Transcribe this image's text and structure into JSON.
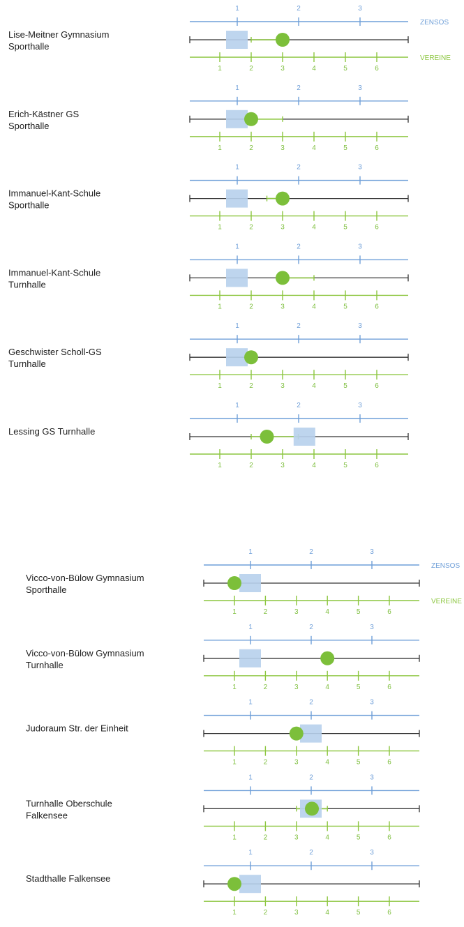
{
  "colors": {
    "zensos": "#6f9fd8",
    "zensos_box": "#b7d0ec",
    "vereine": "#8cc63f",
    "vereine_dot": "#7cbf3a",
    "axis": "#333333",
    "label": "#222222"
  },
  "chart_data": {
    "type": "scatter",
    "axes": {
      "zensos": {
        "name": "ZENSOS",
        "ticks": [
          "1",
          "2",
          "3"
        ]
      },
      "vereine": {
        "name": "VEREINE",
        "ticks": [
          "1",
          "2",
          "3",
          "4",
          "5",
          "6"
        ]
      }
    },
    "groups": [
      {
        "venues": [
          {
            "label_lines": [
              "Lise-Meitner Gymnasium",
              "Sporthalle"
            ],
            "zensos": 1.0,
            "vereine": 3.0,
            "vereine_range": [
              2.0,
              3.0
            ]
          },
          {
            "label_lines": [
              "Erich-Kästner GS",
              "Sporthalle"
            ],
            "zensos": 1.0,
            "vereine": 2.0,
            "vereine_range": [
              2.0,
              3.0
            ]
          },
          {
            "label_lines": [
              "Immanuel-Kant-Schule",
              "Sporthalle"
            ],
            "zensos": 1.0,
            "vereine": 3.0,
            "vereine_range": [
              2.5,
              3.0
            ]
          },
          {
            "label_lines": [
              "Immanuel-Kant-Schule",
              "Turnhalle"
            ],
            "zensos": 1.0,
            "vereine": 3.0,
            "vereine_range": [
              3.0,
              4.0
            ]
          },
          {
            "label_lines": [
              "Geschwister Scholl-GS",
              "Turnhalle"
            ],
            "zensos": 1.0,
            "vereine": 2.0,
            "vereine_range": [
              2.0,
              2.0
            ]
          },
          {
            "label_lines": [
              "Lessing GS Turnhalle"
            ],
            "zensos": 2.1,
            "vereine": 2.5,
            "vereine_range": [
              2.0,
              3.5
            ]
          }
        ]
      },
      {
        "venues": [
          {
            "label_lines": [
              "Vicco-von-Bülow Gymnasium",
              "Sporthalle"
            ],
            "zensos": 1.0,
            "vereine": 1.0,
            "vereine_range": [
              1.0,
              1.0
            ]
          },
          {
            "label_lines": [
              "Vicco-von-Bülow Gymnasium",
              "Turnhalle"
            ],
            "zensos": 1.0,
            "vereine": 4.0,
            "vereine_range": [
              4.0,
              4.0
            ]
          },
          {
            "label_lines": [
              "Judoraum Str. der Einheit"
            ],
            "zensos": 2.0,
            "vereine": 3.0,
            "vereine_range": [
              3.0,
              3.0
            ]
          },
          {
            "label_lines": [
              "Turnhalle Oberschule",
              "Falkensee"
            ],
            "zensos": 2.0,
            "vereine": 3.5,
            "vereine_range": [
              3.0,
              4.0
            ]
          },
          {
            "label_lines": [
              "Stadthalle Falkensee"
            ],
            "zensos": 1.0,
            "vereine": 1.0,
            "vereine_range": [
              1.0,
              1.0
            ]
          }
        ]
      }
    ]
  }
}
